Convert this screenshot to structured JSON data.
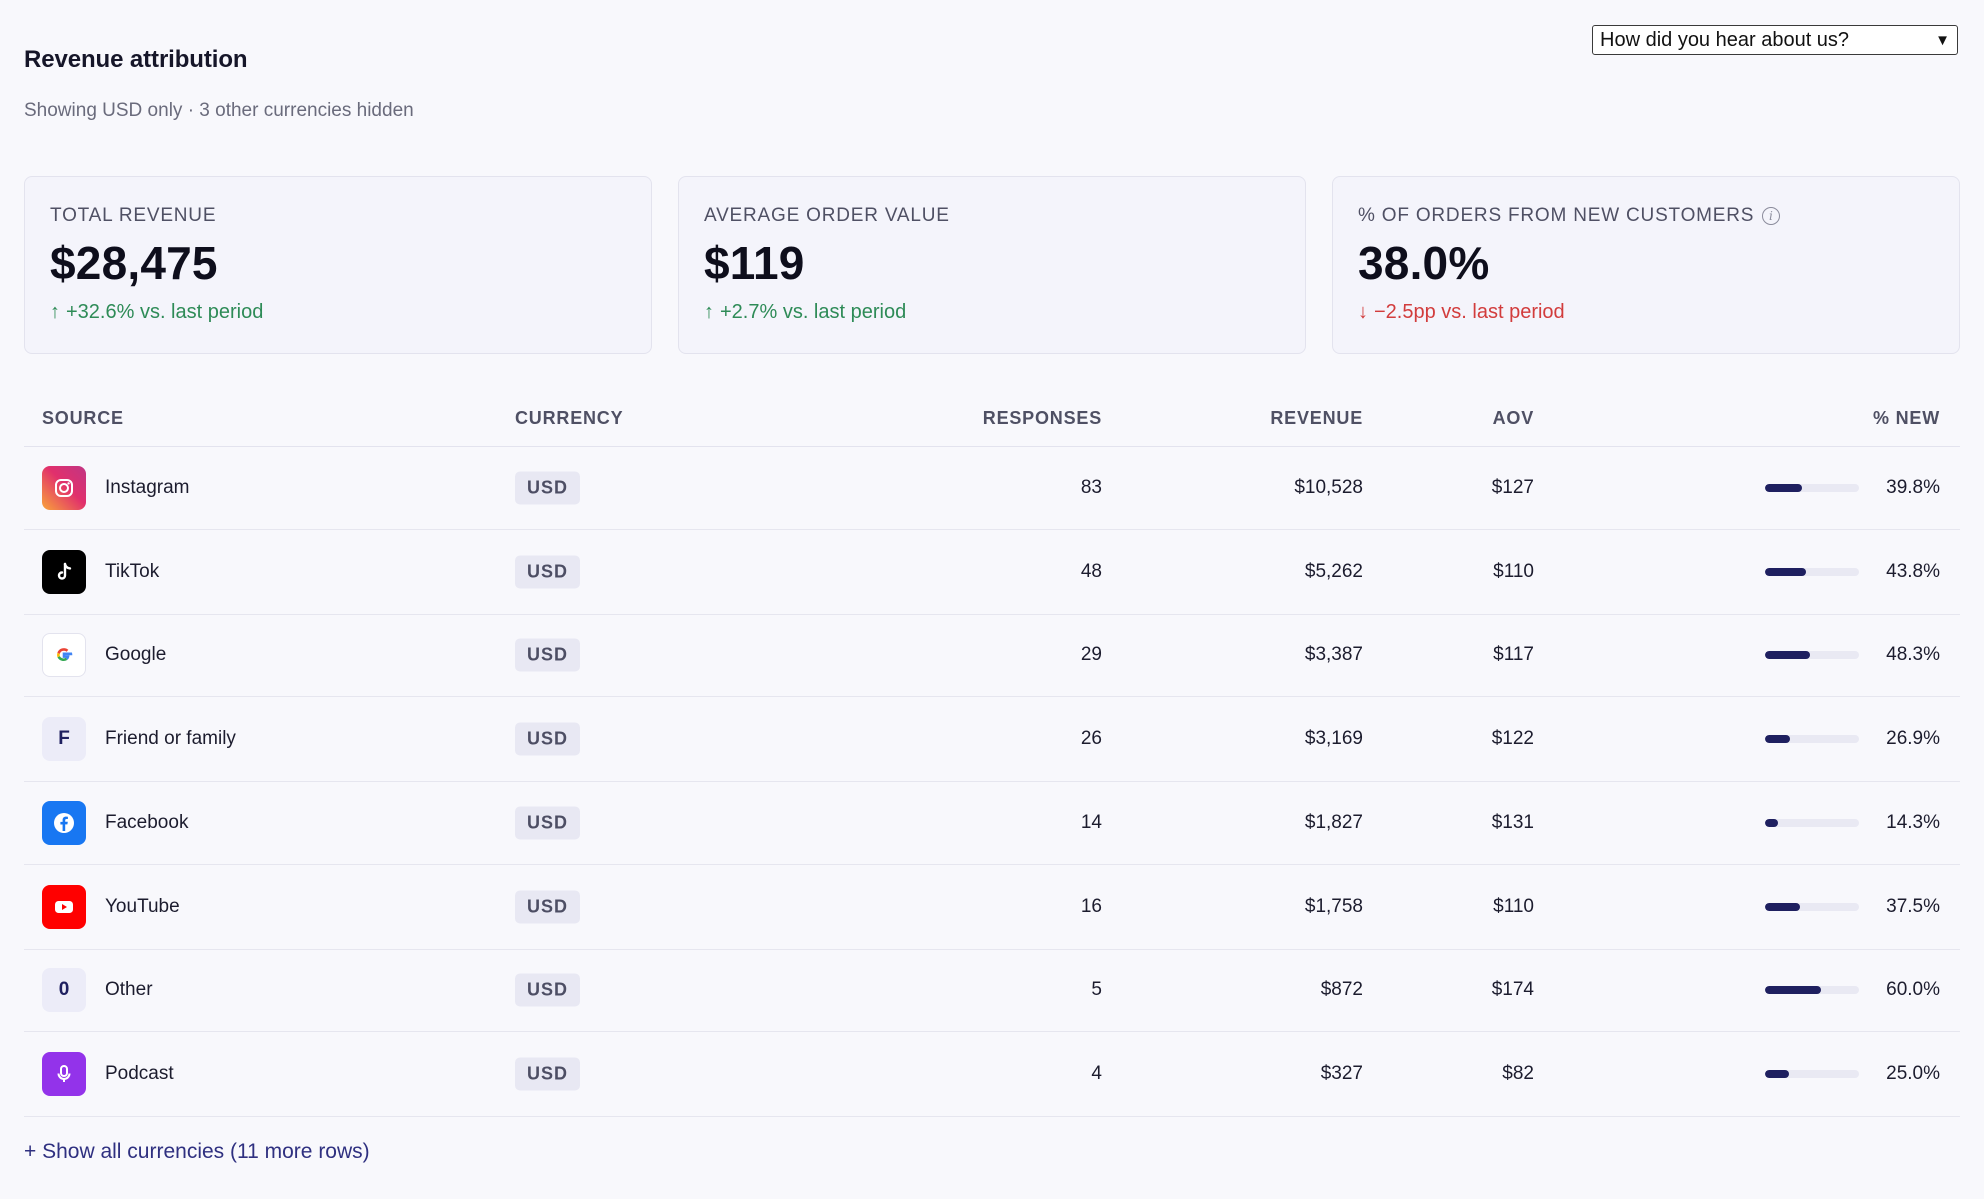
{
  "header": {
    "title": "Revenue attribution",
    "subtitle": "Showing USD only · 3 other currencies hidden",
    "question_select": "How did you hear about us?"
  },
  "kpis": [
    {
      "label": "TOTAL REVENUE",
      "value": "$28,475",
      "delta": "+32.6% vs. last period",
      "delta_arrow": "↑",
      "trend": "up"
    },
    {
      "label": "AVERAGE ORDER VALUE",
      "value": "$119",
      "delta": "+2.7% vs. last period",
      "delta_arrow": "↑",
      "trend": "up"
    },
    {
      "label": "% OF ORDERS FROM NEW CUSTOMERS",
      "value": "38.0%",
      "delta": "−2.5pp vs. last period",
      "delta_arrow": "↓",
      "trend": "down",
      "info_icon": "info-icon"
    }
  ],
  "table": {
    "columns": [
      "SOURCE",
      "CURRENCY",
      "RESPONSES",
      "REVENUE",
      "AOV",
      "% NEW"
    ],
    "rows": [
      {
        "source": "Instagram",
        "icon": "instagram-icon",
        "currency": "USD",
        "responses": "83",
        "revenue": "$10,528",
        "aov": "$127",
        "pct_new": "39.8%",
        "pct_value": 39.8
      },
      {
        "source": "TikTok",
        "icon": "tiktok-icon",
        "currency": "USD",
        "responses": "48",
        "revenue": "$5,262",
        "aov": "$110",
        "pct_new": "43.8%",
        "pct_value": 43.8
      },
      {
        "source": "Google",
        "icon": "google-icon",
        "currency": "USD",
        "responses": "29",
        "revenue": "$3,387",
        "aov": "$117",
        "pct_new": "48.3%",
        "pct_value": 48.3
      },
      {
        "source": "Friend or family",
        "icon": "letter-f-icon",
        "icon_letter": "F",
        "currency": "USD",
        "responses": "26",
        "revenue": "$3,169",
        "aov": "$122",
        "pct_new": "26.9%",
        "pct_value": 26.9
      },
      {
        "source": "Facebook",
        "icon": "facebook-icon",
        "currency": "USD",
        "responses": "14",
        "revenue": "$1,827",
        "aov": "$131",
        "pct_new": "14.3%",
        "pct_value": 14.3
      },
      {
        "source": "YouTube",
        "icon": "youtube-icon",
        "currency": "USD",
        "responses": "16",
        "revenue": "$1,758",
        "aov": "$110",
        "pct_new": "37.5%",
        "pct_value": 37.5
      },
      {
        "source": "Other",
        "icon": "letter-o-icon",
        "icon_letter": "0",
        "currency": "USD",
        "responses": "5",
        "revenue": "$872",
        "aov": "$174",
        "pct_new": "60.0%",
        "pct_value": 60.0
      },
      {
        "source": "Podcast",
        "icon": "podcast-icon",
        "currency": "USD",
        "responses": "4",
        "revenue": "$327",
        "aov": "$82",
        "pct_new": "25.0%",
        "pct_value": 25.0
      }
    ]
  },
  "footer": {
    "show_all": "+ Show all currencies (11 more rows)"
  },
  "colors": {
    "accent": "#1f2060",
    "positive": "#2e8b57",
    "negative": "#d23c3c",
    "instagram": "#e1306c",
    "tiktok": "#000000",
    "facebook": "#1877f2",
    "youtube": "#ff0000",
    "podcast": "#9333ea",
    "letter_badge": "#ececf8"
  }
}
